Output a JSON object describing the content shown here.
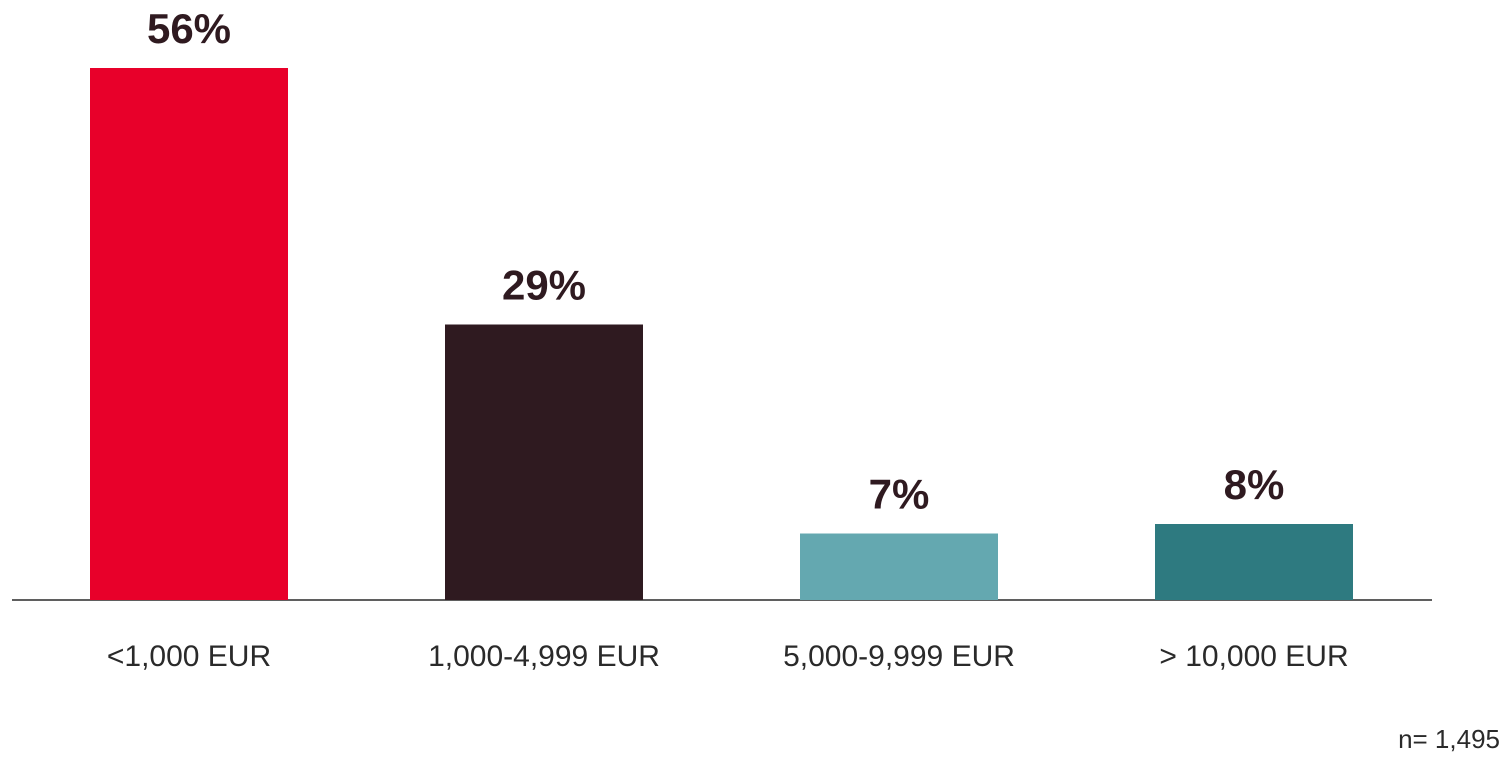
{
  "chart_data": {
    "type": "bar",
    "categories": [
      "<1,000 EUR",
      "1,000-4,999 EUR",
      "5,000-9,999 EUR",
      "> 10,000 EUR"
    ],
    "values": [
      56,
      29,
      7,
      8
    ],
    "value_labels": [
      "56%",
      "29%",
      "7%",
      "8%"
    ],
    "colors": [
      "#e8002a",
      "#2f1a20",
      "#64a8b0",
      "#2e7a80"
    ],
    "note": "n= 1,495"
  }
}
